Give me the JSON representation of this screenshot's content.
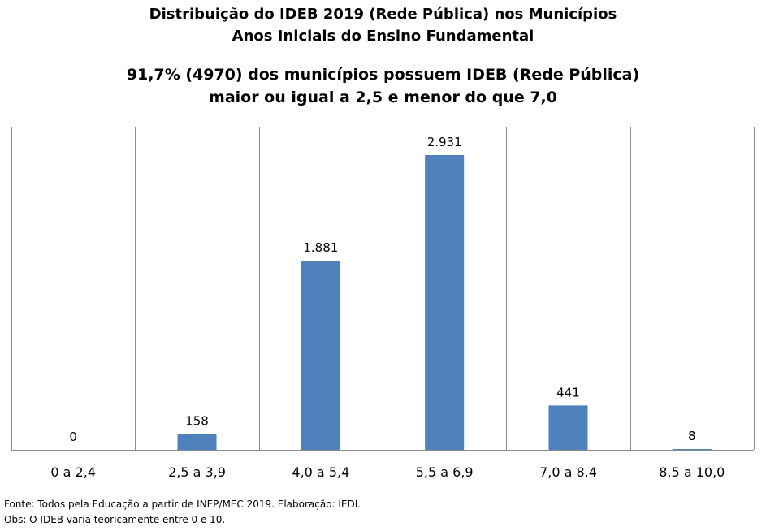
{
  "header": {
    "title_line1": "Distribuição do IDEB 2019 (Rede Pública) nos Municípios",
    "title_line2": "Anos Iniciais do Ensino Fundamental",
    "subtitle_line1": "91,7% (4970) dos municípios possuem IDEB (Rede Pública)",
    "subtitle_line2": "maior ou igual a 2,5 e menor do que 7,0"
  },
  "footer": {
    "source": "Fonte: Todos pela Educação a partir de INEP/MEC 2019. Elaboração: IEDI.",
    "note": "Obs: O IDEB varia teoricamente entre 0 e 10."
  },
  "chart_data": {
    "type": "bar",
    "categories": [
      "0 a 2,4",
      "2,5 a 3,9",
      "4,0 a 5,4",
      "5,5 a 6,9",
      "7,0 a 8,4",
      "8,5 a 10,0"
    ],
    "values": [
      0,
      158,
      1881,
      2931,
      441,
      8
    ],
    "value_labels": [
      "0",
      "158",
      "1.881",
      "2.931",
      "441",
      "8"
    ],
    "bar_color": "#4F81BD",
    "grid": "vertical separators between categories",
    "legend": "none"
  }
}
